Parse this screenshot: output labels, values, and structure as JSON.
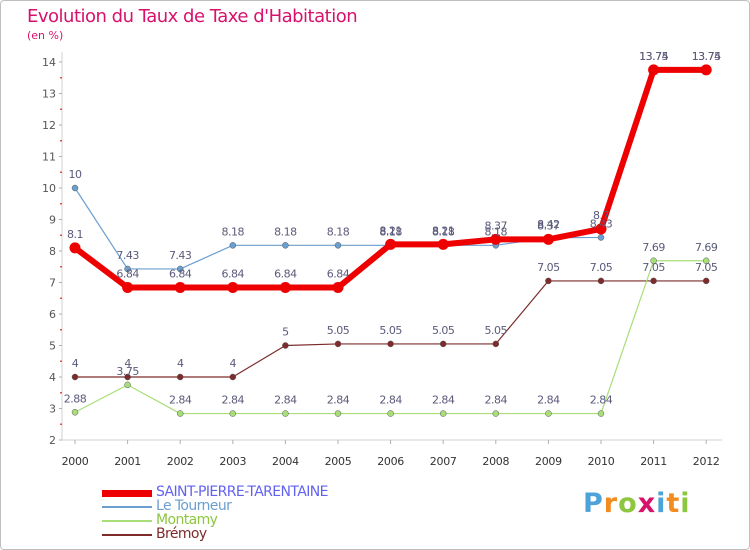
{
  "title": "Evolution du Taux de Taxe d'Habitation",
  "subtitle": "(en %)",
  "brand": {
    "letters": [
      "P",
      "r",
      "o",
      "x",
      "i",
      "t",
      "i"
    ],
    "colors": [
      "#4da3d9",
      "#f28c1e",
      "#8dc63f",
      "#d8116c",
      "#4da3d9",
      "#f28c1e",
      "#8dc63f"
    ]
  },
  "chart_data": {
    "type": "line",
    "title": "Evolution du Taux de Taxe d'Habitation",
    "subtitle": "(en %)",
    "xlabel": "",
    "ylabel": "",
    "ylim": [
      2,
      14
    ],
    "yticks": [
      "2",
      "3",
      "4",
      "5",
      "6",
      "7",
      "8",
      "9",
      "10",
      "11",
      "12",
      "13",
      "14"
    ],
    "grid": false,
    "legend_position": "bottom-left",
    "categories": [
      "2000",
      "2001",
      "2002",
      "2003",
      "2004",
      "2005",
      "2006",
      "2007",
      "2008",
      "2009",
      "2010",
      "2011",
      "2012"
    ],
    "series": [
      {
        "name": "SAINT-PIERRE-TARENTAINE",
        "color": "#ee0000",
        "label_color": "#5a5a7a",
        "values": [
          8.1,
          6.84,
          6.84,
          6.84,
          6.84,
          6.84,
          8.21,
          8.21,
          8.37,
          8.37,
          8.7,
          13.75,
          13.75
        ],
        "labels": [
          "8.1",
          "6.84",
          "6.84",
          "6.84",
          "6.84",
          "6.84",
          "8.21",
          "8.21",
          "8.37",
          "8.37",
          "8.7",
          "13.75",
          "13.75"
        ]
      },
      {
        "name": "Le Tourneur",
        "color": "#6b9fcf",
        "label_color": "#5a5a7a",
        "values": [
          10,
          7.43,
          7.43,
          8.18,
          8.18,
          8.18,
          8.18,
          8.18,
          8.18,
          8.42,
          8.43,
          13.74,
          13.74
        ],
        "labels": [
          "10",
          "7.43",
          "7.43",
          "8.18",
          "8.18",
          "8.18",
          "8.18",
          "8.18",
          "8.18",
          "8.42",
          "8.43",
          "13.74",
          "13.74"
        ]
      },
      {
        "name": "Montamy",
        "color": "#a8de78",
        "label_color": "#5a5a7a",
        "values": [
          2.88,
          3.75,
          2.84,
          2.84,
          2.84,
          2.84,
          2.84,
          2.84,
          2.84,
          2.84,
          2.84,
          7.69,
          7.69
        ],
        "labels": [
          "2.88",
          "3.75",
          "2.84",
          "2.84",
          "2.84",
          "2.84",
          "2.84",
          "2.84",
          "2.84",
          "2.84",
          "2.84",
          "7.69",
          "7.69"
        ]
      },
      {
        "name": "Brémoy",
        "color": "#7d2b2b",
        "label_color": "#5a5a7a",
        "values": [
          4,
          4,
          4,
          4,
          5,
          5.05,
          5.05,
          5.05,
          5.05,
          7.05,
          7.05,
          7.05,
          7.05
        ],
        "labels": [
          "4",
          "4",
          "4",
          "4",
          "5",
          "5.05",
          "5.05",
          "5.05",
          "5.05",
          "7.05",
          "7.05",
          "7.05",
          "7.05"
        ]
      }
    ]
  }
}
